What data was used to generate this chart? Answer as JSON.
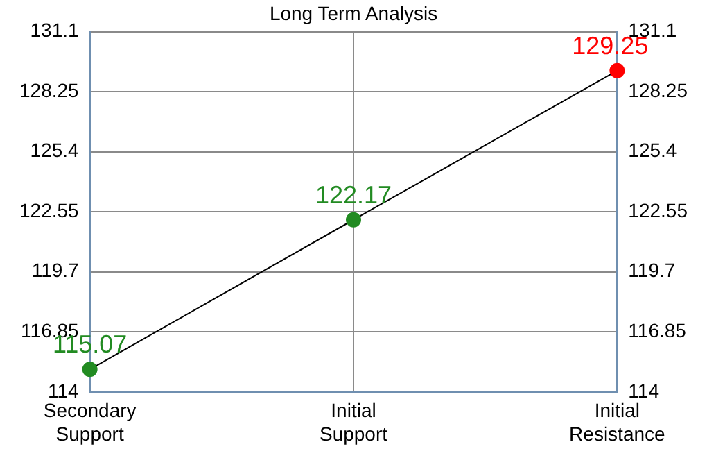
{
  "chart_data": {
    "type": "line",
    "title": "Long Term Analysis",
    "categories": [
      "Secondary Support",
      "Initial Support",
      "Initial Resistance"
    ],
    "series": [
      {
        "values": [
          115.07,
          122.17,
          129.25
        ],
        "color": "#000000",
        "colors": [
          "#228b22",
          "#228b22",
          "#ff0000"
        ]
      }
    ],
    "ylim": [
      114,
      131.1
    ],
    "yticks": [
      114,
      116.85,
      119.7,
      122.55,
      125.4,
      128.25,
      131.1
    ],
    "y2lim": [
      114,
      131.1
    ],
    "y2ticks": [
      114,
      116.85,
      119.7,
      122.55,
      125.4,
      128.25,
      131.1
    ],
    "grid": true,
    "legend": false,
    "marker": "circle",
    "line_style": "solid",
    "data_labels": true
  }
}
